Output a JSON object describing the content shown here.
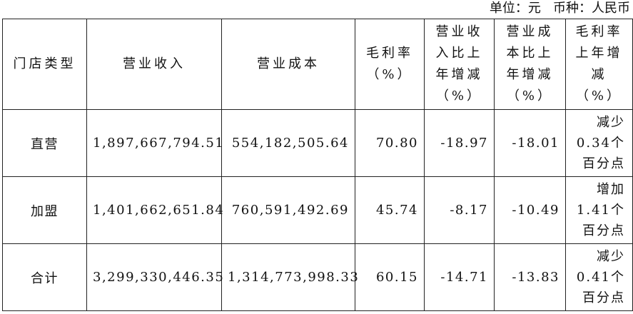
{
  "unit_line": "单位：元   币种：人民币",
  "headers": [
    [
      "门店类型"
    ],
    [
      "营业收入"
    ],
    [
      "营业成本"
    ],
    [
      "毛利率",
      "（%）"
    ],
    [
      "营业收",
      "入比上",
      "年增减",
      "（%）"
    ],
    [
      "营业成",
      "本比上",
      "年增减",
      "（%）"
    ],
    [
      "毛利率",
      "上年增",
      "减（%）"
    ]
  ],
  "rows": [
    {
      "type": "直营",
      "revenue": "1,897,667,794.51",
      "cost": "554,182,505.64",
      "margin": "70.80",
      "rev_change": "-18.97",
      "cost_change": "-18.01",
      "margin_change": [
        "减少",
        "0.34个",
        "百分点"
      ]
    },
    {
      "type": "加盟",
      "revenue": "1,401,662,651.84",
      "cost": "760,591,492.69",
      "margin": "45.74",
      "rev_change": "-8.17",
      "cost_change": "-10.49",
      "margin_change": [
        "增加",
        "1.41个",
        "百分点"
      ]
    },
    {
      "type": "合计",
      "revenue": "3,299,330,446.35",
      "cost": "1,314,773,998.33",
      "margin": "60.15",
      "rev_change": "-14.71",
      "cost_change": "-13.83",
      "margin_change": [
        "减少",
        "0.41个",
        "百分点"
      ]
    }
  ]
}
